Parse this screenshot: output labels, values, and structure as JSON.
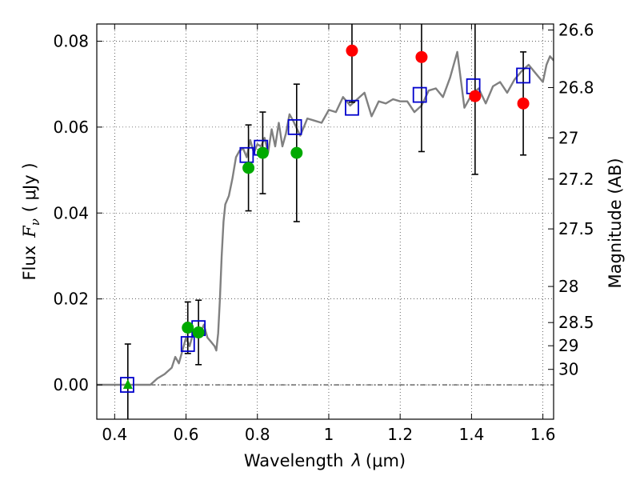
{
  "chart_data": {
    "type": "scatter",
    "title": "",
    "xlabel_text": "Wavelength",
    "xlabel_symbol": "λ",
    "xlabel_unit": "(μm)",
    "ylabel_text": "Flux",
    "ylabel_symbol": "F",
    "ylabel_subscript": "ν",
    "ylabel_unit": "( μJy )",
    "y2label": "Magnitude (AB)",
    "xlim": [
      0.35,
      1.63
    ],
    "ylim": [
      -0.008,
      0.084
    ],
    "grid": true,
    "x_ticks": [
      0.4,
      0.6,
      0.8,
      1.0,
      1.2,
      1.4,
      1.6
    ],
    "x_tick_labels": [
      "0.4",
      "0.6",
      "0.8",
      "1",
      "1.2",
      "1.4",
      "1.6"
    ],
    "y_ticks": [
      0.0,
      0.02,
      0.04,
      0.06,
      0.08
    ],
    "y_tick_labels": [
      "0.00",
      "0.02",
      "0.04",
      "0.06",
      "0.08"
    ],
    "y2_ticks": [
      {
        "label": "26.6",
        "flux": 0.0826
      },
      {
        "label": "26.8",
        "flux": 0.0692
      },
      {
        "label": "27",
        "flux": 0.0575
      },
      {
        "label": "27.2",
        "flux": 0.0479
      },
      {
        "label": "27.5",
        "flux": 0.0363
      },
      {
        "label": "28",
        "flux": 0.0229
      },
      {
        "label": "28.5",
        "flux": 0.0145
      },
      {
        "label": "29",
        "flux": 0.0091
      },
      {
        "label": "30",
        "flux": 0.0036
      }
    ],
    "colors": {
      "model": "#808080",
      "model_photometry": "#0000cc",
      "optical": "#00aa00",
      "infrared": "#ff0000",
      "errorbar": "#000000"
    },
    "model_spectrum": {
      "x": [
        0.35,
        0.5,
        0.52,
        0.54,
        0.56,
        0.57,
        0.58,
        0.59,
        0.6,
        0.61,
        0.62,
        0.63,
        0.64,
        0.65,
        0.66,
        0.67,
        0.68,
        0.685,
        0.69,
        0.695,
        0.7,
        0.705,
        0.71,
        0.72,
        0.73,
        0.74,
        0.75,
        0.76,
        0.77,
        0.78,
        0.79,
        0.8,
        0.81,
        0.82,
        0.83,
        0.84,
        0.85,
        0.86,
        0.87,
        0.88,
        0.89,
        0.9,
        0.92,
        0.94,
        0.96,
        0.98,
        1.0,
        1.02,
        1.04,
        1.06,
        1.08,
        1.1,
        1.12,
        1.14,
        1.16,
        1.18,
        1.2,
        1.22,
        1.24,
        1.26,
        1.28,
        1.3,
        1.32,
        1.34,
        1.36,
        1.38,
        1.4,
        1.42,
        1.44,
        1.46,
        1.48,
        1.5,
        1.52,
        1.54,
        1.56,
        1.58,
        1.6,
        1.61,
        1.62,
        1.63
      ],
      "y": [
        0.0,
        0.0,
        0.0015,
        0.0025,
        0.004,
        0.0065,
        0.005,
        0.008,
        0.011,
        0.009,
        0.012,
        0.013,
        0.012,
        0.014,
        0.011,
        0.01,
        0.009,
        0.008,
        0.012,
        0.02,
        0.03,
        0.038,
        0.042,
        0.044,
        0.048,
        0.053,
        0.0545,
        0.055,
        0.053,
        0.057,
        0.054,
        0.056,
        0.0555,
        0.0575,
        0.054,
        0.0595,
        0.0555,
        0.061,
        0.0555,
        0.0585,
        0.063,
        0.0615,
        0.058,
        0.062,
        0.0615,
        0.061,
        0.064,
        0.0635,
        0.067,
        0.065,
        0.0665,
        0.068,
        0.0625,
        0.066,
        0.0655,
        0.0665,
        0.066,
        0.066,
        0.0635,
        0.065,
        0.0685,
        0.069,
        0.067,
        0.0715,
        0.0775,
        0.0645,
        0.0675,
        0.069,
        0.0655,
        0.0695,
        0.0705,
        0.068,
        0.071,
        0.073,
        0.0745,
        0.0725,
        0.0705,
        0.0745,
        0.0765,
        0.0755
      ]
    },
    "series": [
      {
        "marker": "square",
        "points": [
          {
            "x": 0.435,
            "y": 0.0
          },
          {
            "x": 0.605,
            "y": 0.0095
          },
          {
            "x": 0.635,
            "y": 0.0132
          },
          {
            "x": 0.77,
            "y": 0.0535
          },
          {
            "x": 0.81,
            "y": 0.0552
          },
          {
            "x": 0.905,
            "y": 0.06
          },
          {
            "x": 1.065,
            "y": 0.0645
          },
          {
            "x": 1.255,
            "y": 0.0675
          },
          {
            "x": 1.405,
            "y": 0.0695
          },
          {
            "x": 1.545,
            "y": 0.072
          }
        ]
      },
      {
        "marker": "circle",
        "points": [
          {
            "x": 0.605,
            "y": 0.0133,
            "err": 0.006
          },
          {
            "x": 0.635,
            "y": 0.0122,
            "err": 0.0075
          },
          {
            "x": 0.775,
            "y": 0.0505,
            "err": 0.01
          },
          {
            "x": 0.815,
            "y": 0.054,
            "err": 0.0095
          },
          {
            "x": 0.91,
            "y": 0.054,
            "err": 0.016
          }
        ]
      },
      {
        "marker": "triangle",
        "points": [
          {
            "x": 0.437,
            "y": 0.0,
            "err": 0.0095
          }
        ]
      },
      {
        "marker": "circle",
        "points": [
          {
            "x": 1.065,
            "y": 0.0778,
            "err": 0.012
          },
          {
            "x": 1.26,
            "y": 0.0763,
            "err": 0.022
          },
          {
            "x": 1.41,
            "y": 0.0672,
            "err": 0.0182
          },
          {
            "x": 1.545,
            "y": 0.0655,
            "err": 0.012
          }
        ]
      }
    ]
  }
}
